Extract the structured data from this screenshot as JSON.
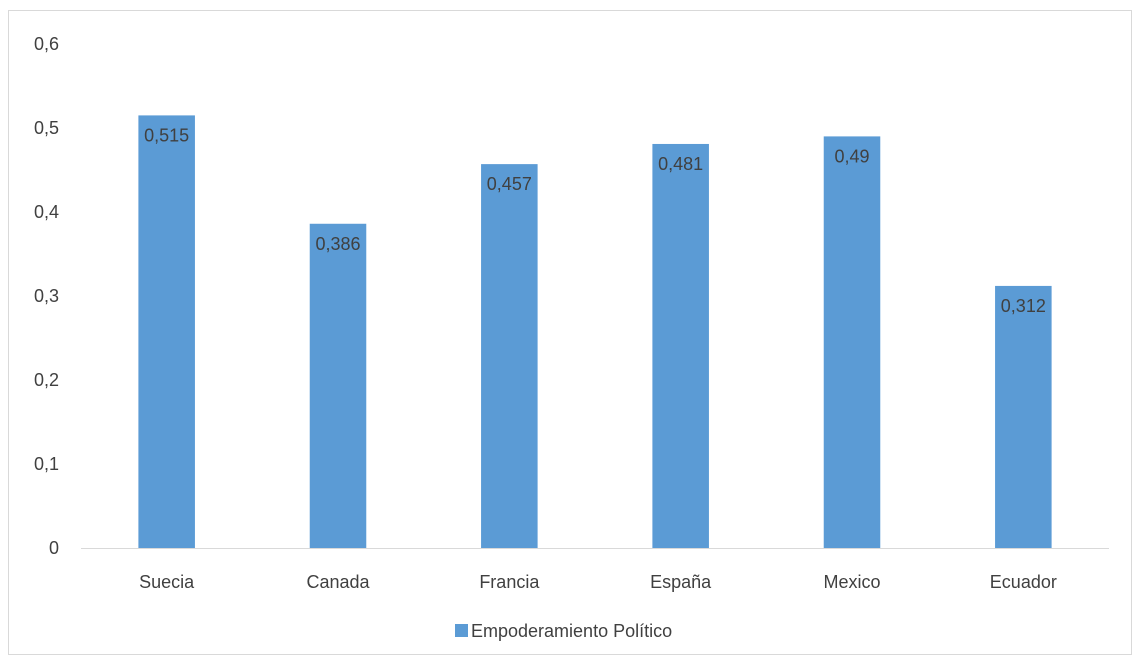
{
  "chart_data": {
    "type": "bar",
    "categories": [
      "Suecia",
      "Canada",
      "Francia",
      "España",
      "Mexico",
      "Ecuador"
    ],
    "series": [
      {
        "name": "Empoderamiento Político",
        "values": [
          0.515,
          0.386,
          0.457,
          0.481,
          0.49,
          0.312
        ],
        "data_labels": [
          "0,515",
          "0,386",
          "0,457",
          "0,481",
          "0,49",
          "0,312"
        ],
        "color": "#5B9BD5"
      }
    ],
    "ylim": [
      0,
      0.6
    ],
    "yticks": [
      0,
      0.1,
      0.2,
      0.3,
      0.4,
      0.5,
      0.6
    ],
    "ytick_labels": [
      "0",
      "0,1",
      "0,2",
      "0,3",
      "0,4",
      "0,5",
      "0,6"
    ],
    "grid": false,
    "legend_position": "bottom",
    "title": "",
    "xlabel": "",
    "ylabel": ""
  }
}
